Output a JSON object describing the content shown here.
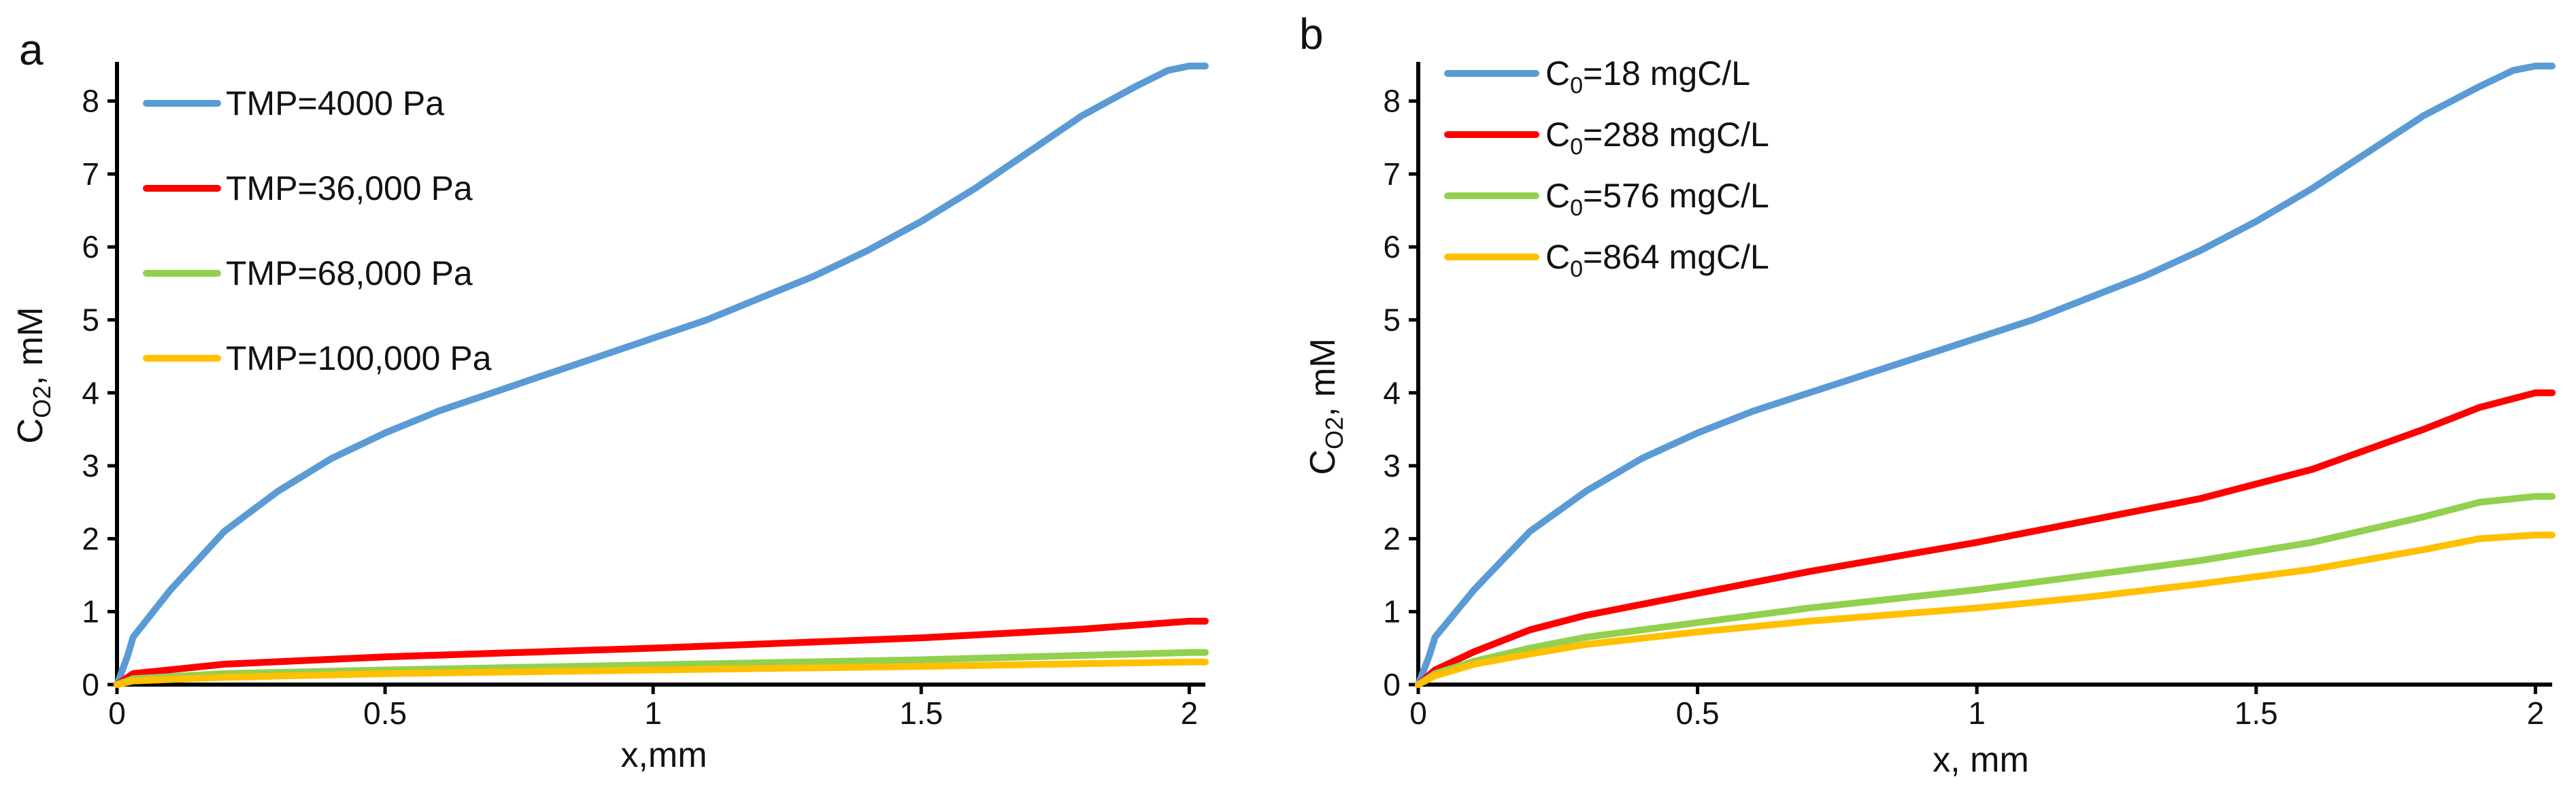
{
  "colors": {
    "blue": "#5B9BD5",
    "red": "#FF0000",
    "green": "#92D050",
    "yellow": "#FFC000"
  },
  "chart_data": [
    {
      "type": "line",
      "panel_label": "a",
      "xlabel": "x,mm",
      "ylabel": {
        "main": "C",
        "sub": "O2",
        "unit": ", mM"
      },
      "xlim": [
        0,
        2.03
      ],
      "ylim": [
        0,
        8.5
      ],
      "xticks": [
        0,
        0.5,
        1,
        1.5,
        2
      ],
      "xtick_labels": [
        "0",
        "0.5",
        "1",
        "1.5",
        "2"
      ],
      "yticks": [
        0,
        1,
        2,
        3,
        4,
        5,
        6,
        7,
        8
      ],
      "ytick_labels": [
        "0",
        "1",
        "2",
        "3",
        "4",
        "5",
        "6",
        "7",
        "8"
      ],
      "legend_position": "top-left",
      "series": [
        {
          "name": "TMP=4000 Pa",
          "legend": {
            "main": "TMP=4000 Pa"
          },
          "color": "#5B9BD5",
          "x": [
            0,
            0.02,
            0.03,
            0.1,
            0.2,
            0.3,
            0.4,
            0.5,
            0.6,
            0.7,
            0.8,
            0.9,
            1.0,
            1.1,
            1.2,
            1.3,
            1.4,
            1.5,
            1.6,
            1.7,
            1.8,
            1.9,
            1.96,
            2.0,
            2.03
          ],
          "y": [
            0,
            0.4,
            0.65,
            1.3,
            2.1,
            2.65,
            3.1,
            3.45,
            3.75,
            4.0,
            4.25,
            4.5,
            4.75,
            5.0,
            5.3,
            5.6,
            5.95,
            6.35,
            6.8,
            7.3,
            7.8,
            8.2,
            8.42,
            8.48,
            8.48
          ]
        },
        {
          "name": "TMP=36,000 Pa",
          "legend": {
            "main": "TMP=36,000 Pa"
          },
          "color": "#FF0000",
          "x": [
            0,
            0.03,
            0.2,
            0.5,
            1.0,
            1.5,
            1.8,
            2.0,
            2.03
          ],
          "y": [
            0,
            0.15,
            0.28,
            0.38,
            0.5,
            0.64,
            0.76,
            0.87,
            0.87
          ]
        },
        {
          "name": "TMP=68,000 Pa",
          "legend": {
            "main": "TMP=68,000 Pa"
          },
          "color": "#92D050",
          "x": [
            0,
            0.03,
            0.2,
            0.5,
            1.0,
            1.5,
            2.0,
            2.03
          ],
          "y": [
            0,
            0.08,
            0.15,
            0.2,
            0.27,
            0.34,
            0.44,
            0.44
          ]
        },
        {
          "name": "TMP=100,000 Pa",
          "legend": {
            "main": "TMP=100,000 Pa"
          },
          "color": "#FFC000",
          "x": [
            0,
            0.03,
            0.2,
            0.5,
            1.0,
            1.5,
            2.0,
            2.03
          ],
          "y": [
            0,
            0.05,
            0.1,
            0.15,
            0.2,
            0.25,
            0.31,
            0.31
          ]
        }
      ]
    },
    {
      "type": "line",
      "panel_label": "b",
      "xlabel": "x, mm",
      "ylabel": {
        "main": "C",
        "sub": "O2",
        "unit": ", mM"
      },
      "xlim": [
        0,
        2.03
      ],
      "ylim": [
        0,
        8.5
      ],
      "xticks": [
        0,
        0.5,
        1,
        1.5,
        2
      ],
      "xtick_labels": [
        "0",
        "0.5",
        "1",
        "1.5",
        "2"
      ],
      "yticks": [
        0,
        1,
        2,
        3,
        4,
        5,
        6,
        7,
        8
      ],
      "ytick_labels": [
        "0",
        "1",
        "2",
        "3",
        "4",
        "5",
        "6",
        "7",
        "8"
      ],
      "legend_position": "top-left",
      "series": [
        {
          "name": "C0=18 mgC/L",
          "legend": {
            "main": "C",
            "sub": "0",
            "rest": "=18 mgC/L"
          },
          "color": "#5B9BD5",
          "x": [
            0,
            0.02,
            0.03,
            0.1,
            0.2,
            0.3,
            0.4,
            0.5,
            0.6,
            0.7,
            0.8,
            0.9,
            1.0,
            1.1,
            1.2,
            1.3,
            1.4,
            1.5,
            1.6,
            1.7,
            1.8,
            1.9,
            1.96,
            2.0,
            2.03
          ],
          "y": [
            0,
            0.4,
            0.65,
            1.3,
            2.1,
            2.65,
            3.1,
            3.45,
            3.75,
            4.0,
            4.25,
            4.5,
            4.75,
            5.0,
            5.3,
            5.6,
            5.95,
            6.35,
            6.8,
            7.3,
            7.8,
            8.2,
            8.42,
            8.48,
            8.48
          ]
        },
        {
          "name": "C0=288 mgC/L",
          "legend": {
            "main": "C",
            "sub": "0",
            "rest": "=288 mgC/L"
          },
          "color": "#FF0000",
          "x": [
            0,
            0.03,
            0.1,
            0.2,
            0.3,
            0.5,
            0.7,
            1.0,
            1.2,
            1.4,
            1.6,
            1.8,
            1.9,
            2.0,
            2.03
          ],
          "y": [
            0,
            0.2,
            0.45,
            0.75,
            0.95,
            1.25,
            1.55,
            1.95,
            2.25,
            2.55,
            2.95,
            3.5,
            3.8,
            4.0,
            4.0
          ]
        },
        {
          "name": "C0=576 mgC/L",
          "legend": {
            "main": "C",
            "sub": "0",
            "rest": "=576 mgC/L"
          },
          "color": "#92D050",
          "x": [
            0,
            0.03,
            0.1,
            0.2,
            0.3,
            0.5,
            0.7,
            1.0,
            1.2,
            1.4,
            1.6,
            1.8,
            1.9,
            2.0,
            2.03
          ],
          "y": [
            0,
            0.15,
            0.32,
            0.5,
            0.65,
            0.85,
            1.05,
            1.3,
            1.5,
            1.7,
            1.95,
            2.3,
            2.5,
            2.58,
            2.58
          ]
        },
        {
          "name": "C0=864 mgC/L",
          "legend": {
            "main": "C",
            "sub": "0",
            "rest": "=864 mgC/L"
          },
          "color": "#FFC000",
          "x": [
            0,
            0.03,
            0.1,
            0.2,
            0.3,
            0.5,
            0.7,
            1.0,
            1.2,
            1.4,
            1.6,
            1.8,
            1.9,
            2.0,
            2.03
          ],
          "y": [
            0,
            0.12,
            0.28,
            0.42,
            0.55,
            0.72,
            0.87,
            1.05,
            1.2,
            1.38,
            1.58,
            1.85,
            2.0,
            2.05,
            2.05
          ]
        }
      ]
    }
  ]
}
